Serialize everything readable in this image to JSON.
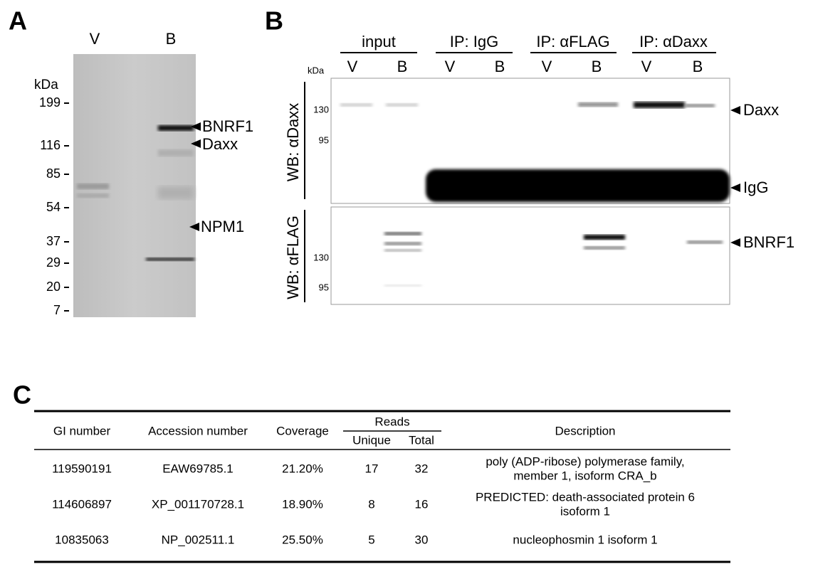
{
  "panel_a": {
    "label": "A",
    "lanes": [
      "V",
      "B"
    ],
    "unit": "kDa",
    "markers": [
      199,
      116,
      85,
      54,
      37,
      29,
      20,
      7
    ],
    "bands": [
      "BNRF1",
      "Daxx",
      "NPM1"
    ]
  },
  "panel_b": {
    "label": "B",
    "groups": [
      "input",
      "IP: IgG",
      "IP: αFLAG",
      "IP: αDaxx"
    ],
    "lanes": [
      "V",
      "B",
      "V",
      "B",
      "V",
      "B",
      "V",
      "B"
    ],
    "unit": "kDa",
    "upper": {
      "ylabel": "WB: αDaxx",
      "markers": [
        130,
        95
      ],
      "bands": [
        "Daxx",
        "IgG"
      ]
    },
    "lower": {
      "ylabel": "WB: αFLAG",
      "markers": [
        130,
        95
      ],
      "bands": [
        "BNRF1"
      ]
    }
  },
  "panel_c": {
    "label": "C",
    "table": {
      "headers": [
        "GI number",
        "Accession number",
        "Coverage",
        "Description"
      ],
      "reads_header": "Reads",
      "reads_subheaders": [
        "Unique",
        "Total"
      ],
      "rows": [
        {
          "gi": "119590191",
          "accession": "EAW69785.1",
          "coverage": "21.20%",
          "unique": 17,
          "total": 32,
          "description": [
            "poly (ADP-ribose) polymerase family,",
            "member 1, isoform CRA_b"
          ]
        },
        {
          "gi": "114606897",
          "accession": "XP_001170728.1",
          "coverage": "18.90%",
          "unique": 8,
          "total": 16,
          "description": [
            "PREDICTED: death-associated protein 6",
            "isoform 1"
          ]
        },
        {
          "gi": "10835063",
          "accession": "NP_002511.1",
          "coverage": "25.50%",
          "unique": 5,
          "total": 30,
          "description": [
            "nucleophosmin 1 isoform 1"
          ]
        }
      ]
    }
  }
}
